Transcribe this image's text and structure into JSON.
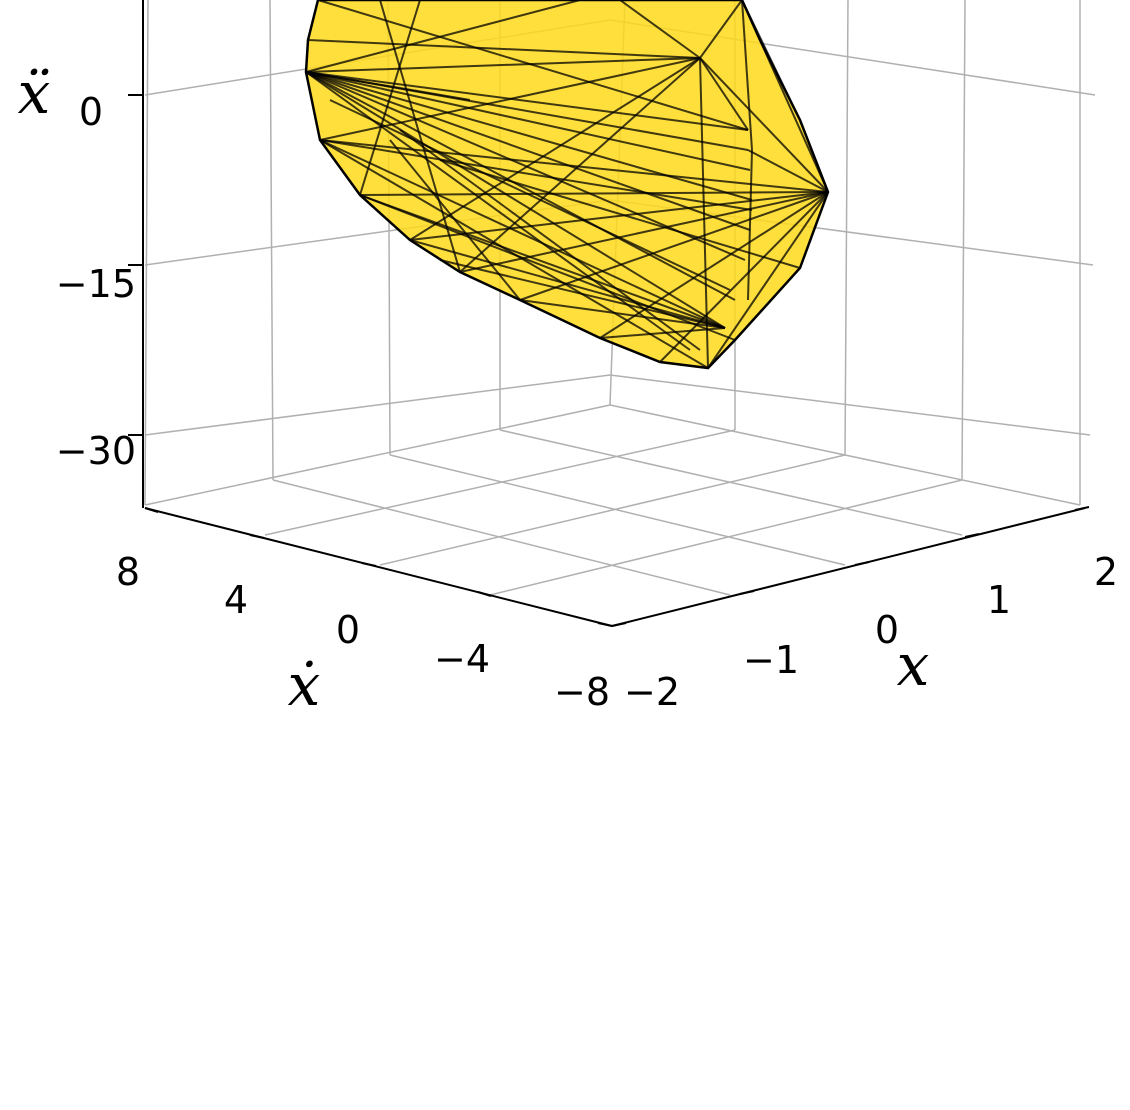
{
  "chart_data": {
    "type": "3d-polyhedron",
    "title": "",
    "face_color": "#FFD91A",
    "edge_color": "#000000",
    "grid_color": "#b0b0b0",
    "axes": {
      "x": {
        "label": "x",
        "range": [
          -2,
          2
        ],
        "ticks": [
          -2,
          -1,
          0,
          1,
          2
        ],
        "tick_labels": [
          "−2",
          "−1",
          "0",
          "1",
          "2"
        ]
      },
      "xdot": {
        "label": "ẋ",
        "range": [
          -8,
          8
        ],
        "ticks": [
          8,
          4,
          0,
          -4,
          -8
        ],
        "tick_labels": [
          "8",
          "4",
          "0",
          "−4",
          "−8"
        ]
      },
      "xddot": {
        "label": "ẍ",
        "range": [
          -36,
          14
        ],
        "ticks": [
          0,
          -15,
          -30
        ],
        "tick_labels": [
          "0",
          "−15",
          "−30"
        ]
      }
    },
    "grid": true
  }
}
